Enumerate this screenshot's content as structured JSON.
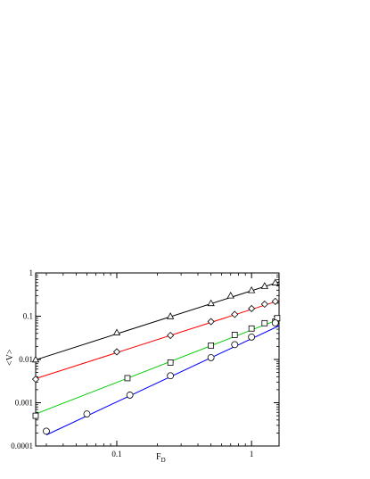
{
  "chart_data": {
    "type": "scatter",
    "title": "",
    "xlabel": "F",
    "xlabel_sub": "D",
    "ylabel": "<V>",
    "xscale": "log",
    "yscale": "log",
    "xlim": [
      0.025,
      1.6
    ],
    "ylim": [
      0.0001,
      1
    ],
    "grid": false,
    "legend": "none",
    "x_ticks": [
      {
        "value": 0.1,
        "label": "0.1"
      },
      {
        "value": 1,
        "label": "1"
      }
    ],
    "y_ticks": [
      {
        "value": 0.0001,
        "label": "0.0001"
      },
      {
        "value": 0.001,
        "label": "0.001"
      },
      {
        "value": 0.01,
        "label": "0.01"
      },
      {
        "value": 0.1,
        "label": "0.1"
      },
      {
        "value": 1,
        "label": "1"
      }
    ],
    "series": [
      {
        "marker": "triangle",
        "line_color": "#000000",
        "x": [
          0.025,
          0.1,
          0.25,
          0.5,
          0.7,
          1.0,
          1.25,
          1.5
        ],
        "y": [
          0.01,
          0.042,
          0.1,
          0.2,
          0.3,
          0.4,
          0.5,
          0.6
        ],
        "fit": {
          "x": [
            0.025,
            1.6
          ],
          "y": [
            0.0098,
            0.62
          ]
        }
      },
      {
        "marker": "diamond",
        "line_color": "#ff0000",
        "x": [
          0.025,
          0.1,
          0.25,
          0.5,
          0.75,
          1.0,
          1.25,
          1.5
        ],
        "y": [
          0.0035,
          0.015,
          0.036,
          0.075,
          0.11,
          0.15,
          0.19,
          0.22
        ],
        "fit": {
          "x": [
            0.025,
            1.6
          ],
          "y": [
            0.0036,
            0.23
          ]
        }
      },
      {
        "marker": "square",
        "line_color": "#00cc00",
        "x": [
          0.025,
          0.12,
          0.25,
          0.5,
          0.75,
          1.0,
          1.25,
          1.5,
          1.55
        ],
        "y": [
          0.0005,
          0.0037,
          0.0085,
          0.021,
          0.037,
          0.052,
          0.069,
          0.075,
          0.09
        ],
        "fit": {
          "x": [
            0.025,
            1.6
          ],
          "y": [
            0.00055,
            0.085
          ]
        }
      },
      {
        "marker": "circle",
        "line_color": "#0000ff",
        "x": [
          0.03,
          0.06,
          0.125,
          0.25,
          0.5,
          0.75,
          1.0,
          1.5
        ],
        "y": [
          0.00022,
          0.00055,
          0.0015,
          0.0042,
          0.011,
          0.022,
          0.033,
          0.07
        ],
        "fit": {
          "x": [
            0.03,
            1.6
          ],
          "y": [
            0.00018,
            0.06
          ]
        }
      }
    ]
  }
}
